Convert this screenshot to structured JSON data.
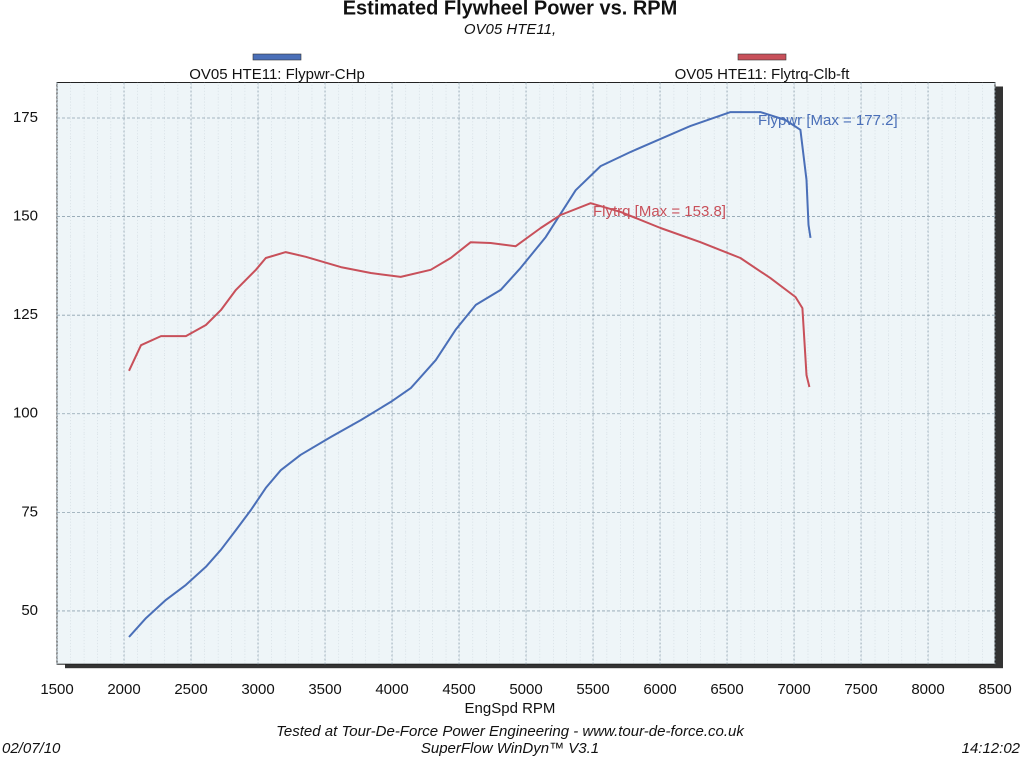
{
  "chart_data": {
    "type": "line",
    "title": "Estimated Flywheel Power vs. RPM",
    "subtitle": "OV05 HTE11,",
    "x_label": "EngSpd RPM",
    "xlim": [
      1500,
      8500
    ],
    "xticks": [
      1500,
      2000,
      2500,
      3000,
      3500,
      4000,
      4500,
      5000,
      5500,
      6000,
      6500,
      7000,
      7500,
      8000,
      8500
    ],
    "ylim": [
      36.5,
      184
    ],
    "yticks": [
      50,
      75,
      100,
      125,
      150,
      175
    ],
    "grid": true,
    "series": [
      {
        "name": "OV05 HTE11: Flypwr-CHp",
        "color": "#4a6fb8",
        "x": [
          2037,
          2164,
          2313,
          2462,
          2611,
          2723,
          2835,
          2947,
          3058,
          3170,
          3319,
          3543,
          3767,
          3991,
          4140,
          4327,
          4475,
          4625,
          4811,
          4960,
          5147,
          5371,
          5557,
          5781,
          6004,
          6228,
          6526,
          6750,
          6936,
          7048,
          7093,
          7108,
          7123
        ],
        "values": [
          43.4,
          48.2,
          52.8,
          56.6,
          61.2,
          65.5,
          70.5,
          75.6,
          81.2,
          85.7,
          89.6,
          94.1,
          98.4,
          103,
          106.5,
          113.6,
          121.3,
          127.6,
          131.4,
          137,
          144.8,
          156.7,
          162.8,
          166.4,
          169.7,
          173,
          176.5,
          176.5,
          174.5,
          172,
          159.3,
          147.9,
          144.6
        ]
      },
      {
        "name": "OV05 HTE11: Flytrq-Clb-ft",
        "color": "#c8505a",
        "x": [
          2037,
          2127,
          2276,
          2462,
          2611,
          2723,
          2835,
          2984,
          3058,
          3207,
          3357,
          3618,
          3842,
          4065,
          4289,
          4438,
          4587,
          4736,
          4923,
          5110,
          5258,
          5482,
          5706,
          6004,
          6302,
          6600,
          6824,
          7011,
          7063,
          7093,
          7115
        ],
        "values": [
          110.9,
          117.4,
          119.7,
          119.7,
          122.5,
          126.3,
          131.4,
          136.5,
          139.5,
          141,
          139.8,
          137.2,
          135.7,
          134.7,
          136.5,
          139.5,
          143.5,
          143.3,
          142.5,
          147.1,
          150.4,
          153.4,
          151.2,
          147.1,
          143.5,
          139.5,
          134.4,
          129.6,
          126.8,
          109.8,
          106.8
        ]
      }
    ],
    "annotations": [
      "Flypwr [Max = 177.2]",
      "Flytrq [Max = 153.8]"
    ],
    "notes": [
      "Tested at Tour-De-Force Power Engineering - www.tour-de-force.co.uk",
      "SuperFlow WinDyn™ V3.1"
    ],
    "date": "02/07/10",
    "time": "14:12:02"
  }
}
